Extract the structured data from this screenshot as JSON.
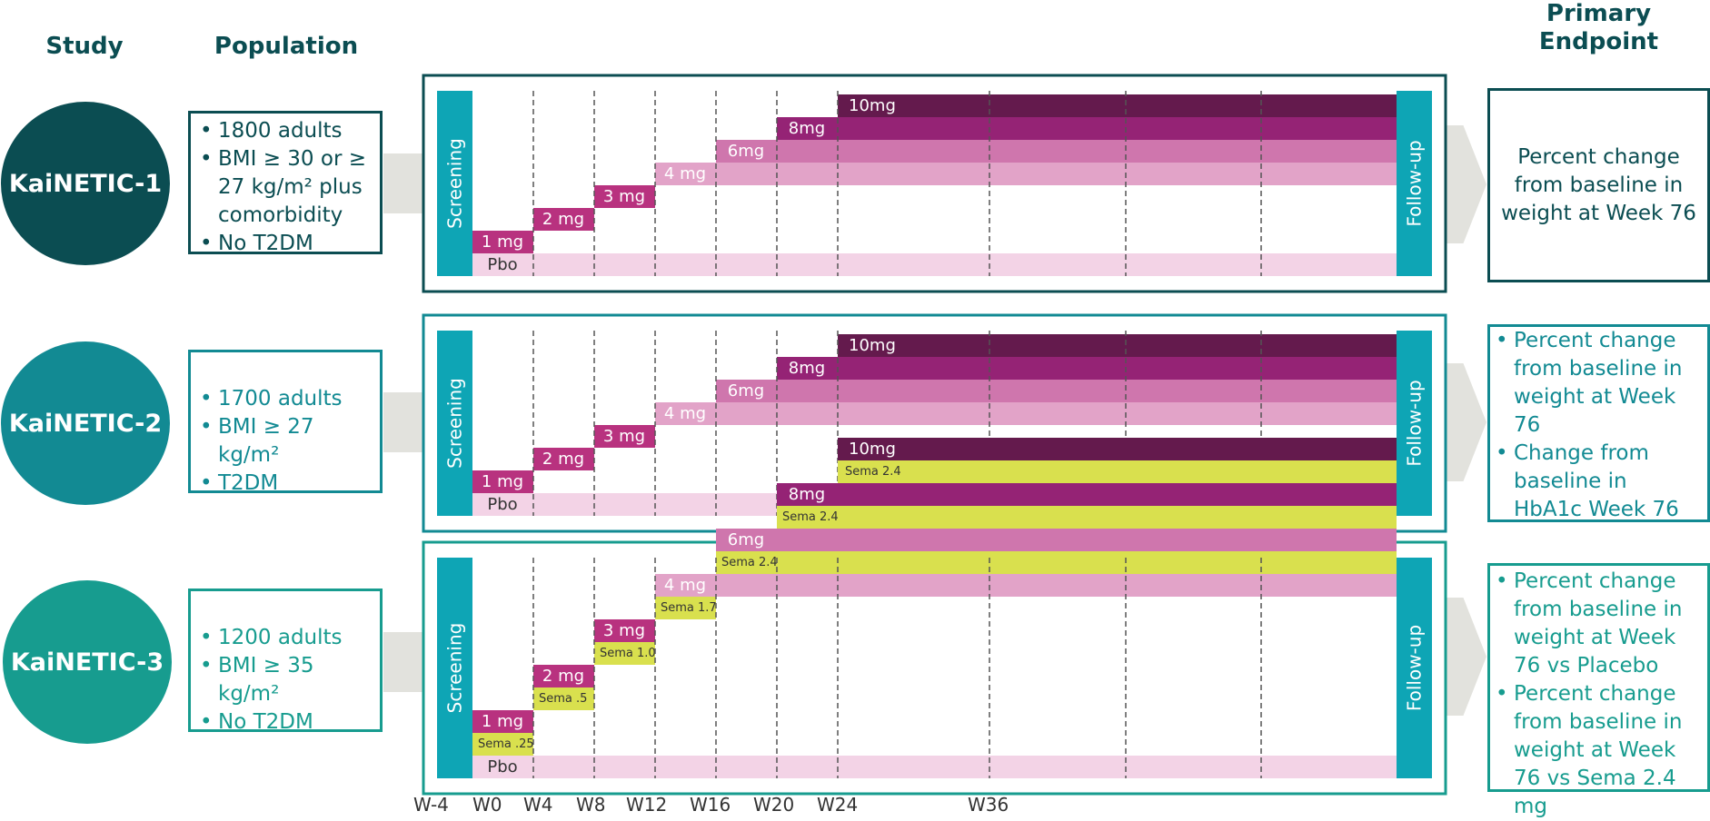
{
  "headers": {
    "study": "Study",
    "population": "Population",
    "endpoint": [
      "Primary",
      "Endpoint"
    ]
  },
  "studies": [
    {
      "name": "KaiNETIC-1",
      "population": [
        "1800 adults",
        "BMI ≥ 30 or ≥ 27 kg/m² plus comorbidity",
        "No T2DM"
      ],
      "endpoint": [
        "Percent change from baseline in weight at Week 76"
      ],
      "doses": [
        "1 mg",
        "2 mg",
        "3 mg",
        "4 mg",
        "6mg",
        "8mg",
        "10mg"
      ],
      "sema": [],
      "placebo": "Pbo",
      "screening": "Screening",
      "followup": "Follow-up"
    },
    {
      "name": "KaiNETIC-2",
      "population": [
        "1700 adults",
        "BMI ≥ 27 kg/m²",
        "T2DM"
      ],
      "endpoint": [
        "Percent change from baseline in weight at Week 76",
        "Change from baseline in HbA1c Week 76"
      ],
      "doses": [
        "1 mg",
        "2 mg",
        "3 mg",
        "4 mg",
        "6mg",
        "8mg",
        "10mg"
      ],
      "sema": [],
      "placebo": "Pbo",
      "screening": "Screening",
      "followup": "Follow-up"
    },
    {
      "name": "KaiNETIC-3",
      "population": [
        "1200 adults",
        "BMI ≥ 35 kg/m²",
        "No T2DM"
      ],
      "endpoint": [
        "Percent change from baseline in weight at Week 76 vs Placebo",
        "Percent change from baseline in weight at Week 76 vs Sema 2.4 mg"
      ],
      "doses": [
        "1 mg",
        "2 mg",
        "3 mg",
        "4 mg",
        "6mg",
        "8mg",
        "10mg"
      ],
      "sema": [
        "Sema .25",
        "Sema .5",
        "Sema 1.0",
        "Sema 1.7",
        "Sema 2.4",
        "Sema 2.4",
        "Sema 2.4"
      ],
      "placebo": "Pbo",
      "screening": "Screening",
      "followup": "Follow-up"
    }
  ],
  "weeks": [
    "W-4",
    "W0",
    "W4",
    "W8",
    "W12",
    "W16",
    "W20",
    "W24",
    "W36"
  ],
  "colors": {
    "study1": "#0b4d52",
    "study2": "#128a93",
    "study3": "#179c8f",
    "screening_bar": "#0ea5b5",
    "placebo": "#f3d3e6",
    "dose_1_3": "#b8327f",
    "dose_4": "#e2a3c8",
    "dose_6": "#cf76ad",
    "dose_8": "#952375",
    "dose_10": "#641a4d",
    "sema": "#d9e04e"
  }
}
